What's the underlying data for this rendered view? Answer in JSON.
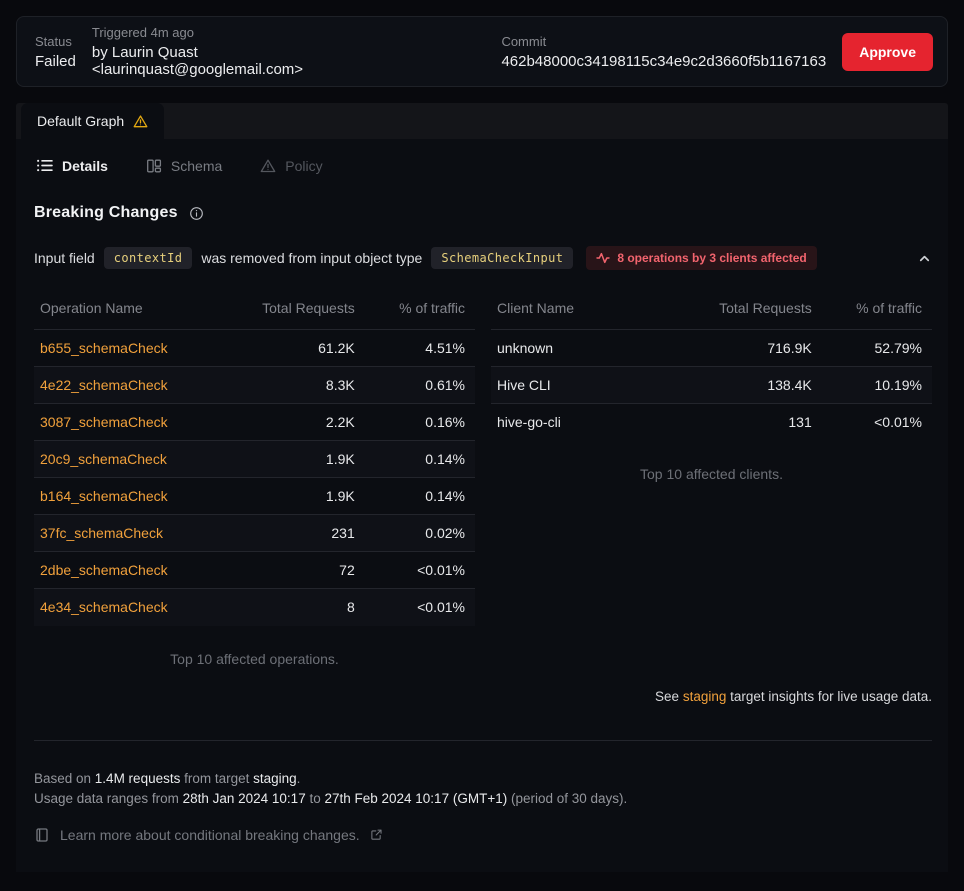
{
  "header": {
    "status_label": "Status",
    "status_value": "Failed",
    "triggered_label": "Triggered 4m ago",
    "triggered_by": "by Laurin Quast <laurinquast@googlemail.com>",
    "commit_label": "Commit",
    "commit_value": "462b48000c34198115c34e9c2d3660f5b1167163",
    "approve_label": "Approve"
  },
  "graph_tab": {
    "label": "Default Graph"
  },
  "tabs": [
    {
      "label": "Details",
      "state": "active"
    },
    {
      "label": "Schema",
      "state": "default"
    },
    {
      "label": "Policy",
      "state": "dimmed"
    }
  ],
  "breaking": {
    "title": "Breaking Changes",
    "change": {
      "prefix": "Input field",
      "field": "contextId",
      "middle": "was removed from input object type",
      "type": "SchemaCheckInput",
      "badge": "8 operations by 3 clients affected"
    }
  },
  "operations_table": {
    "headers": [
      "Operation Name",
      "Total Requests",
      "% of traffic"
    ],
    "rows": [
      [
        "b655_schemaCheck",
        "61.2K",
        "4.51%"
      ],
      [
        "4e22_schemaCheck",
        "8.3K",
        "0.61%"
      ],
      [
        "3087_schemaCheck",
        "2.2K",
        "0.16%"
      ],
      [
        "20c9_schemaCheck",
        "1.9K",
        "0.14%"
      ],
      [
        "b164_schemaCheck",
        "1.9K",
        "0.14%"
      ],
      [
        "37fc_schemaCheck",
        "231",
        "0.02%"
      ],
      [
        "2dbe_schemaCheck",
        "72",
        "<0.01%"
      ],
      [
        "4e34_schemaCheck",
        "8",
        "<0.01%"
      ]
    ],
    "caption": "Top 10 affected operations."
  },
  "clients_table": {
    "headers": [
      "Client Name",
      "Total Requests",
      "% of traffic"
    ],
    "rows": [
      [
        "unknown",
        "716.9K",
        "52.79%"
      ],
      [
        "Hive CLI",
        "138.4K",
        "10.19%"
      ],
      [
        "hive-go-cli",
        "131",
        "<0.01%"
      ]
    ],
    "caption": "Top 10 affected clients.",
    "note": {
      "prefix": "See ",
      "link": "staging",
      "suffix": " target insights for live usage data."
    }
  },
  "footer": {
    "line1": {
      "t1": "Based on ",
      "b1": "1.4M requests",
      "t2": " from target ",
      "b2": "staging",
      "t3": "."
    },
    "line2": {
      "t1": "Usage data ranges from ",
      "b1": "28th Jan 2024 10:17",
      "t2": " to ",
      "b2": "27th Feb 2024 10:17 (GMT+1)",
      "t3": " (period of 30 days)."
    },
    "learn_more": "Learn more about conditional breaking changes."
  },
  "icons": {
    "warning-icon": "triangle-exclamation",
    "list-icon": "bulleted-list",
    "schema-icon": "split-columns",
    "policy-icon": "triangle-exclamation",
    "info-icon": "info-circle",
    "pulse-icon": "activity-waveform",
    "chevron-up-icon": "chevron-up",
    "book-icon": "book",
    "external-link-icon": "arrow-out-of-box"
  },
  "colors": {
    "accent_orange": "#f1a13c",
    "danger_red": "#e5242f",
    "warning_yellow": "#e3a812",
    "badge_text_red": "#f2646e",
    "chip_text_yellow": "#e7d07c",
    "panel_bg": "#0b0d12",
    "page_bg": "#08090d"
  }
}
